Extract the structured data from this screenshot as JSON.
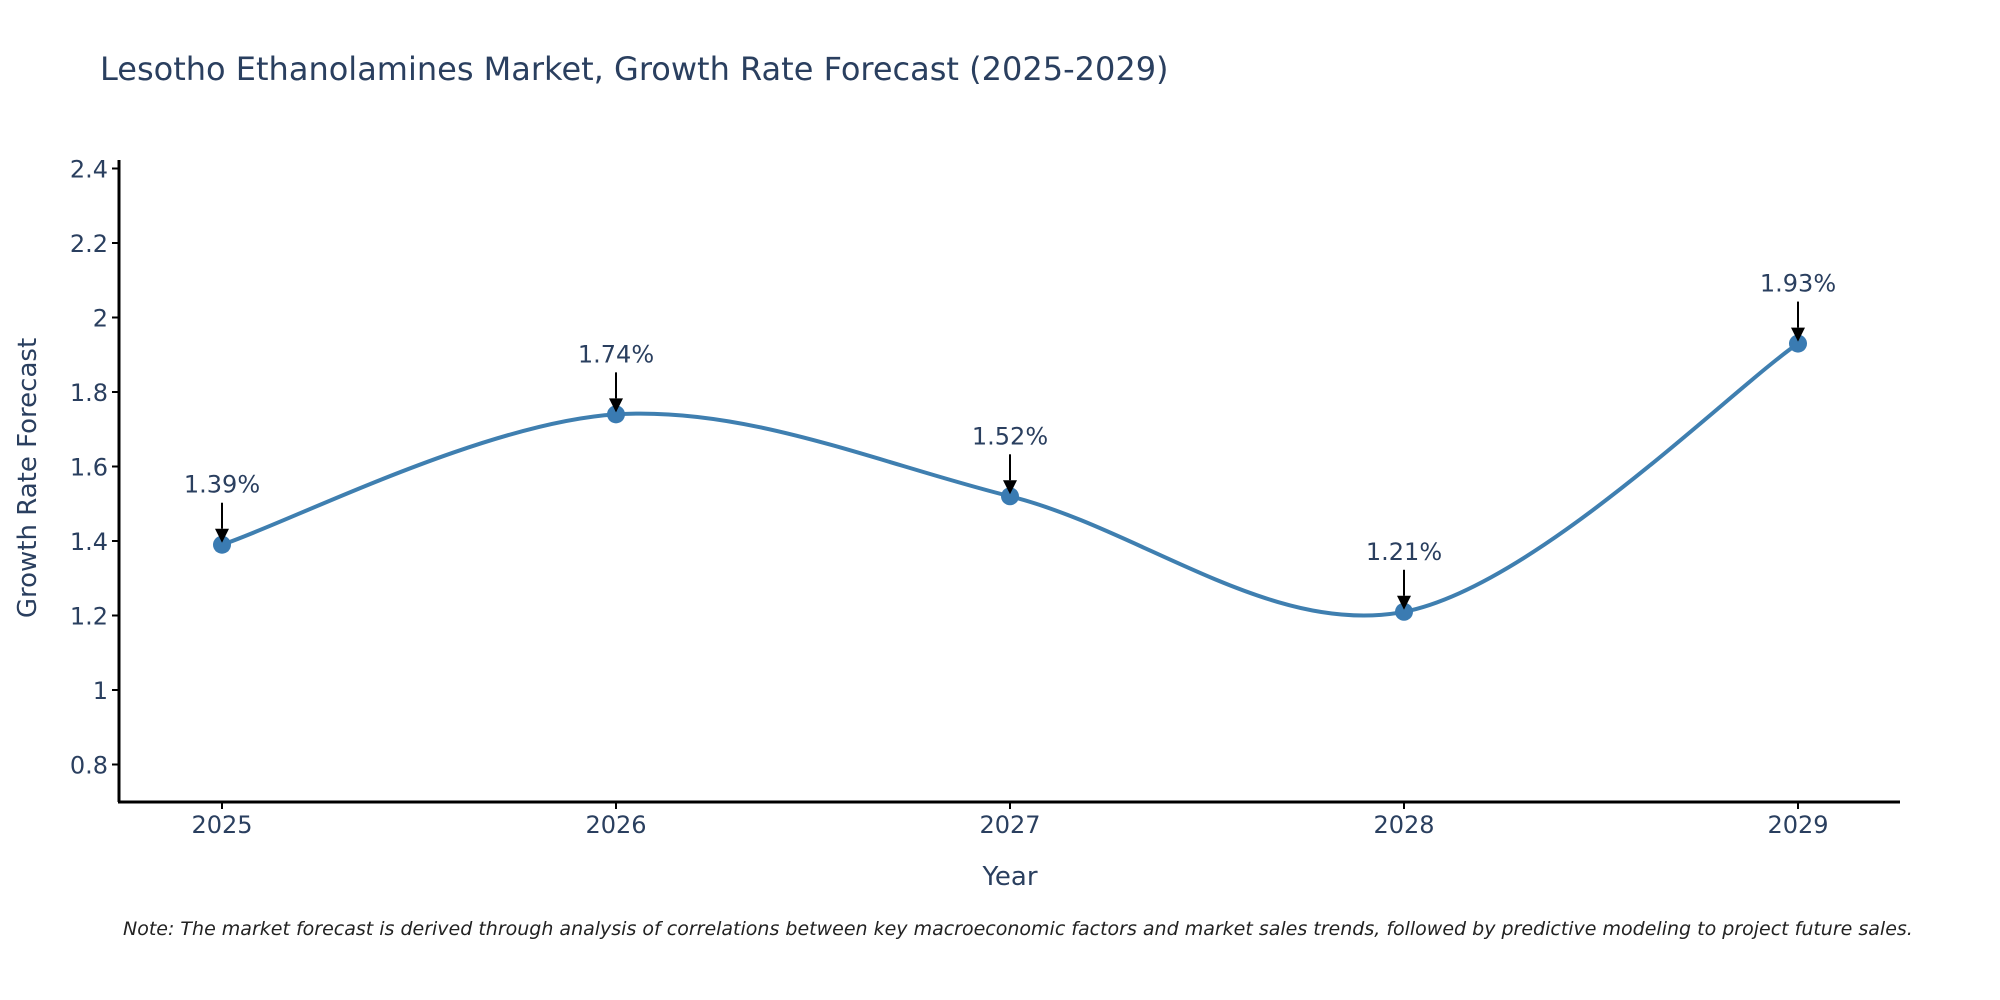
{
  "chart_data": {
    "type": "line",
    "title": "Lesotho Ethanolamines Market, Growth Rate Forecast (2025-2029)",
    "xlabel": "Year",
    "ylabel": "Growth Rate Forecast",
    "categories": [
      "2025",
      "2026",
      "2027",
      "2028",
      "2029"
    ],
    "values": [
      1.39,
      1.74,
      1.52,
      1.21,
      1.93
    ],
    "data_labels": [
      "1.39%",
      "1.74%",
      "1.52%",
      "1.21%",
      "1.93%"
    ],
    "ylim": [
      0.7,
      2.42
    ],
    "yticks": [
      0.8,
      1,
      1.2,
      1.4,
      1.6,
      1.8,
      2,
      2.2,
      2.4
    ],
    "ytick_labels": [
      "0.8",
      "1",
      "1.2",
      "1.4",
      "1.6",
      "1.8",
      "2",
      "2.2",
      "2.4"
    ],
    "grid": false,
    "line_shape": "spline"
  },
  "note": "Note: The market forecast is derived through analysis of correlations between key macroeconomic factors and market sales trends, followed by predictive modeling to project future sales.",
  "colors": {
    "line": "#3f7fb0",
    "marker": "#3a7bb2",
    "axis": "#000000",
    "text": "#2a3f5f"
  }
}
